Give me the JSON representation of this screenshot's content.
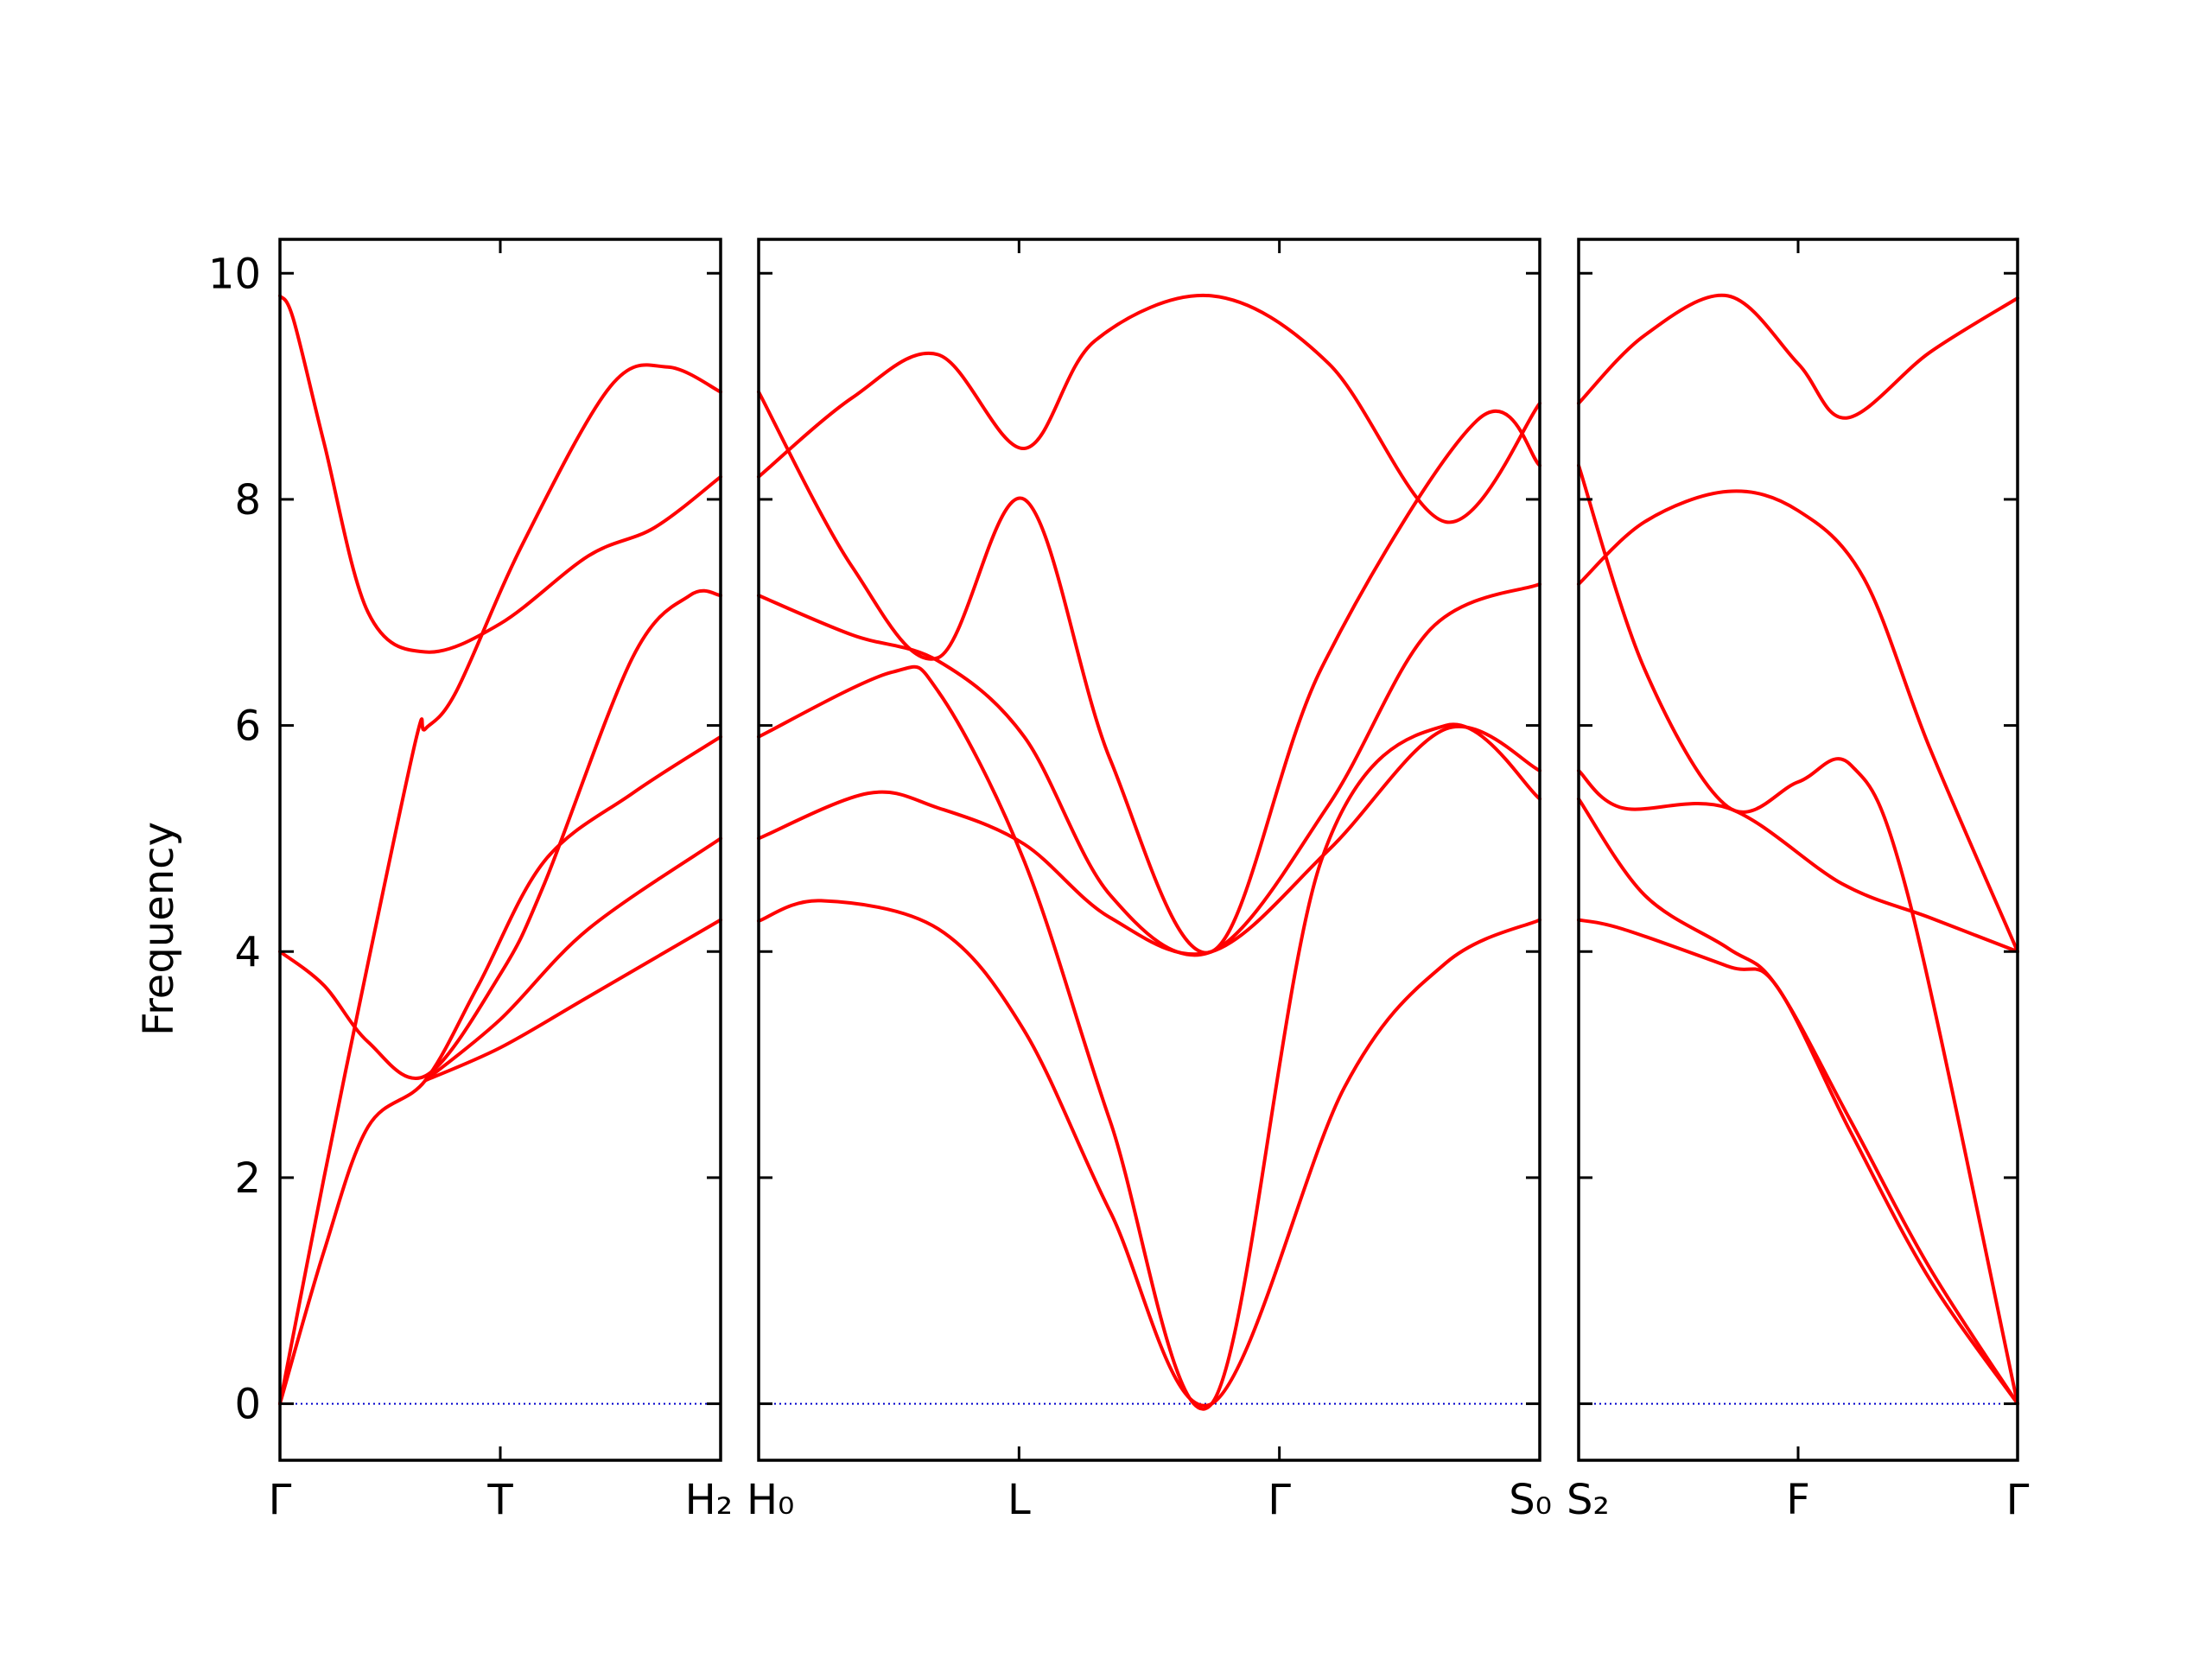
{
  "chart_data": {
    "type": "line",
    "ylabel": "Frequency",
    "ylim": [
      -0.5,
      10.3
    ],
    "yticks": [
      "0",
      "2",
      "4",
      "6",
      "8",
      "10"
    ],
    "colors": {
      "band": "#ff0000",
      "zero_line": "#0000cc",
      "frame": "#000000"
    },
    "grid": false,
    "zero_line": {
      "style": "dotted",
      "value": 0
    },
    "panels": [
      {
        "xlabels": [
          "Γ",
          "T",
          "H₂"
        ],
        "band_count": 6,
        "paths": [
          [
            [
              0,
              9.8
            ],
            [
              0.03,
              9.6
            ],
            [
              0.1,
              8.5
            ],
            [
              0.2,
              7.0
            ],
            [
              0.33,
              6.65
            ],
            [
              0.5,
              6.9
            ],
            [
              0.7,
              7.5
            ],
            [
              0.85,
              7.75
            ],
            [
              1,
              8.2
            ]
          ],
          [
            [
              0,
              4.0
            ],
            [
              0.1,
              3.7
            ],
            [
              0.2,
              3.2
            ],
            [
              0.33,
              2.9
            ],
            [
              0.5,
              3.8
            ],
            [
              0.6,
              4.6
            ],
            [
              0.8,
              6.6
            ],
            [
              0.93,
              7.15
            ],
            [
              1,
              7.15
            ]
          ],
          [
            [
              0,
              0
            ],
            [
              0.1,
              2.0
            ],
            [
              0.2,
              3.9
            ],
            [
              0.31,
              5.9
            ],
            [
              0.33,
              5.97
            ],
            [
              0.4,
              6.3
            ],
            [
              0.55,
              7.6
            ],
            [
              0.75,
              9.0
            ],
            [
              0.88,
              9.17
            ],
            [
              1,
              8.95
            ]
          ],
          [
            [
              0,
              0
            ],
            [
              0.1,
              1.35
            ],
            [
              0.2,
              2.45
            ],
            [
              0.33,
              2.86
            ],
            [
              0.45,
              3.7
            ],
            [
              0.6,
              4.8
            ],
            [
              0.8,
              5.4
            ],
            [
              1,
              5.9
            ]
          ],
          [
            [
              0.33,
              2.86
            ],
            [
              0.5,
              3.4
            ],
            [
              0.7,
              4.2
            ],
            [
              1,
              5.0
            ]
          ],
          [
            [
              0.33,
              2.86
            ],
            [
              0.5,
              3.15
            ],
            [
              0.7,
              3.6
            ],
            [
              1,
              4.28
            ]
          ]
        ]
      },
      {
        "xlabels": [
          "H₀",
          "L",
          "Γ",
          "S₀"
        ],
        "band_count": 6,
        "paths": [
          [
            [
              0,
              8.2
            ],
            [
              0.12,
              8.9
            ],
            [
              0.23,
              9.28
            ],
            [
              0.34,
              8.45
            ],
            [
              0.43,
              9.4
            ],
            [
              0.58,
              9.8
            ],
            [
              0.73,
              9.2
            ],
            [
              0.88,
              7.8
            ],
            [
              1,
              8.85
            ]
          ],
          [
            [
              0,
              8.95
            ],
            [
              0.12,
              7.4
            ],
            [
              0.23,
              6.6
            ],
            [
              0.34,
              8.0
            ],
            [
              0.45,
              5.7
            ],
            [
              0.58,
              4.0
            ],
            [
              0.72,
              6.5
            ],
            [
              0.92,
              8.7
            ],
            [
              1,
              8.3
            ]
          ],
          [
            [
              0,
              7.15
            ],
            [
              0.12,
              6.8
            ],
            [
              0.23,
              6.57
            ],
            [
              0.34,
              5.9
            ],
            [
              0.45,
              4.5
            ],
            [
              0.58,
              4.0
            ],
            [
              0.73,
              5.3
            ],
            [
              0.86,
              6.85
            ],
            [
              1,
              7.25
            ]
          ],
          [
            [
              0,
              5.9
            ],
            [
              0.17,
              6.47
            ],
            [
              0.23,
              6.3
            ],
            [
              0.34,
              4.8
            ],
            [
              0.45,
              2.5
            ],
            [
              0.58,
              0
            ],
            [
              0.72,
              4.8
            ],
            [
              0.88,
              6.0
            ],
            [
              1,
              5.35
            ]
          ],
          [
            [
              0,
              5.0
            ],
            [
              0.14,
              5.4
            ],
            [
              0.23,
              5.27
            ],
            [
              0.34,
              4.95
            ],
            [
              0.45,
              4.3
            ],
            [
              0.58,
              4.0
            ],
            [
              0.73,
              4.9
            ],
            [
              0.88,
              5.97
            ],
            [
              1,
              5.6
            ]
          ],
          [
            [
              0,
              4.27
            ],
            [
              0.08,
              4.45
            ],
            [
              0.23,
              4.2
            ],
            [
              0.34,
              3.3
            ],
            [
              0.45,
              1.7
            ],
            [
              0.58,
              0
            ],
            [
              0.75,
              2.8
            ],
            [
              0.88,
              3.9
            ],
            [
              1,
              4.28
            ]
          ]
        ]
      },
      {
        "xlabels": [
          "S₂",
          "F",
          "Γ"
        ],
        "band_count": 6,
        "paths": [
          [
            [
              0,
              8.85
            ],
            [
              0.15,
              9.45
            ],
            [
              0.34,
              9.8
            ],
            [
              0.5,
              9.2
            ],
            [
              0.61,
              8.72
            ],
            [
              0.8,
              9.3
            ],
            [
              1,
              9.78
            ]
          ],
          [
            [
              0,
              7.25
            ],
            [
              0.15,
              7.8
            ],
            [
              0.34,
              8.07
            ],
            [
              0.5,
              7.9
            ],
            [
              0.65,
              7.3
            ],
            [
              0.8,
              5.8
            ],
            [
              1,
              4.0
            ]
          ],
          [
            [
              0,
              8.3
            ],
            [
              0.15,
              6.5
            ],
            [
              0.34,
              5.28
            ],
            [
              0.5,
              5.5
            ],
            [
              0.62,
              5.65
            ],
            [
              0.75,
              4.5
            ],
            [
              1,
              0
            ]
          ],
          [
            [
              0,
              5.6
            ],
            [
              0.1,
              5.27
            ],
            [
              0.34,
              5.27
            ],
            [
              0.6,
              4.6
            ],
            [
              0.8,
              4.3
            ],
            [
              1,
              4.0
            ]
          ],
          [
            [
              0,
              5.35
            ],
            [
              0.15,
              4.5
            ],
            [
              0.34,
              4.03
            ],
            [
              0.45,
              3.7
            ],
            [
              0.62,
              2.5
            ],
            [
              0.8,
              1.2
            ],
            [
              1,
              0
            ]
          ],
          [
            [
              0,
              4.28
            ],
            [
              0.1,
              4.2
            ],
            [
              0.34,
              3.87
            ],
            [
              0.45,
              3.7
            ],
            [
              0.62,
              2.4
            ],
            [
              0.8,
              1.1
            ],
            [
              1,
              0
            ]
          ]
        ]
      }
    ]
  }
}
